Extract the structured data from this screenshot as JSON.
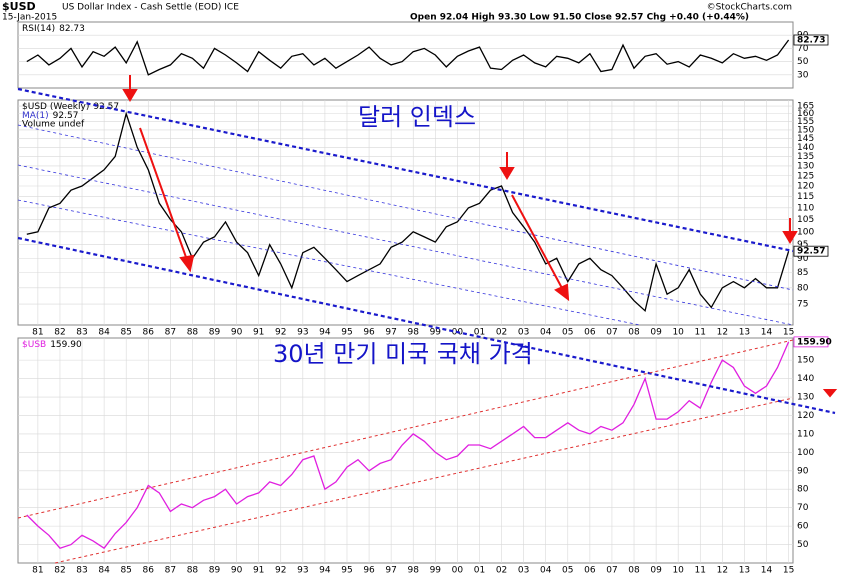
{
  "header": {
    "symbol": "$USD",
    "description": "US Dollar Index - Cash Settle (EOD) ICE",
    "date": "15-Jan-2015",
    "quote": "Open 92.04 High 93.30 Low 91.50 Close 92.57 Chg +0.40 (+0.44%)",
    "credit": "©StockCharts.com"
  },
  "chart_data": [
    {
      "type": "line",
      "grid": true,
      "xlim": [
        1980.1,
        2015.2
      ],
      "ylim": [
        10,
        110
      ],
      "yticks": [
        90,
        70,
        50,
        30
      ],
      "x": [
        1980.5,
        1981,
        1981.5,
        1982,
        1982.5,
        1983,
        1983.5,
        1984,
        1984.5,
        1985,
        1985.5,
        1986,
        1986.5,
        1987,
        1987.5,
        1988,
        1988.5,
        1989,
        1989.5,
        1990,
        1990.5,
        1991,
        1991.5,
        1992,
        1992.5,
        1993,
        1993.5,
        1994,
        1994.5,
        1995,
        1995.5,
        1996,
        1996.5,
        1997,
        1997.5,
        1998,
        1998.5,
        1999,
        1999.5,
        2000,
        2000.5,
        2001,
        2001.5,
        2002,
        2002.5,
        2003,
        2003.5,
        2004,
        2004.5,
        2005,
        2005.5,
        2006,
        2006.5,
        2007,
        2007.5,
        2008,
        2008.5,
        2009,
        2009.5,
        2010,
        2010.5,
        2011,
        2011.5,
        2012,
        2012.5,
        2013,
        2013.5,
        2014,
        2014.5,
        2015
      ],
      "series": [
        {
          "name": "RSI(14)",
          "color": "#000000",
          "values": [
            50,
            60,
            45,
            55,
            70,
            42,
            65,
            58,
            72,
            48,
            80,
            30,
            38,
            45,
            62,
            55,
            40,
            70,
            60,
            48,
            35,
            65,
            52,
            40,
            58,
            62,
            45,
            55,
            40,
            50,
            60,
            72,
            55,
            45,
            50,
            65,
            70,
            60,
            42,
            58,
            66,
            72,
            40,
            38,
            52,
            60,
            48,
            42,
            58,
            55,
            48,
            62,
            35,
            38,
            75,
            40,
            58,
            62,
            46,
            50,
            42,
            60,
            55,
            48,
            62,
            55,
            58,
            52,
            60,
            82.73
          ]
        }
      ]
    },
    {
      "type": "line",
      "grid": true,
      "log": true,
      "xlim": [
        1980.1,
        2015.2
      ],
      "ylim": [
        69,
        169
      ],
      "yticks": [
        165,
        160,
        155,
        150,
        145,
        140,
        135,
        130,
        125,
        120,
        115,
        110,
        105,
        100,
        95,
        90,
        85,
        80,
        75
      ],
      "xticks": [
        {
          "value": 1981,
          "label": "81"
        },
        {
          "value": 1982,
          "label": "82"
        },
        {
          "value": 1983,
          "label": "83"
        },
        {
          "value": 1984,
          "label": "84"
        },
        {
          "value": 1985,
          "label": "85"
        },
        {
          "value": 1986,
          "label": "86"
        },
        {
          "value": 1987,
          "label": "87"
        },
        {
          "value": 1988,
          "label": "88"
        },
        {
          "value": 1989,
          "label": "89"
        },
        {
          "value": 1990,
          "label": "90"
        },
        {
          "value": 1991,
          "label": "91"
        },
        {
          "value": 1992,
          "label": "92"
        },
        {
          "value": 1993,
          "label": "93"
        },
        {
          "value": 1994,
          "label": "94"
        },
        {
          "value": 1995,
          "label": "95"
        },
        {
          "value": 1996,
          "label": "96"
        },
        {
          "value": 1997,
          "label": "97"
        },
        {
          "value": 1998,
          "label": "98"
        },
        {
          "value": 1999,
          "label": "99"
        },
        {
          "value": 2000,
          "label": "00"
        },
        {
          "value": 2001,
          "label": "01"
        },
        {
          "value": 2002,
          "label": "02"
        },
        {
          "value": 2003,
          "label": "03"
        },
        {
          "value": 2004,
          "label": "04"
        },
        {
          "value": 2005,
          "label": "05"
        },
        {
          "value": 2006,
          "label": "06"
        },
        {
          "value": 2007,
          "label": "07"
        },
        {
          "value": 2008,
          "label": "08"
        },
        {
          "value": 2009,
          "label": "09"
        },
        {
          "value": 2010,
          "label": "10"
        },
        {
          "value": 2011,
          "label": "11"
        },
        {
          "value": 2012,
          "label": "12"
        },
        {
          "value": 2013,
          "label": "13"
        },
        {
          "value": 2014,
          "label": "14"
        },
        {
          "value": 2015,
          "label": "15"
        }
      ],
      "annotation": "달러 인덱스",
      "overlay": {
        "name": "MA(1)",
        "value": 92.57
      },
      "volume_label": "Volume undef",
      "x": [
        1980.5,
        1981,
        1981.5,
        1982,
        1982.5,
        1983,
        1983.5,
        1984,
        1984.5,
        1985,
        1985.5,
        1986,
        1986.5,
        1987,
        1987.5,
        1988,
        1988.5,
        1989,
        1989.5,
        1990,
        1990.5,
        1991,
        1991.5,
        1992,
        1992.5,
        1993,
        1993.5,
        1994,
        1994.5,
        1995,
        1995.5,
        1996,
        1996.5,
        1997,
        1997.5,
        1998,
        1998.5,
        1999,
        1999.5,
        2000,
        2000.5,
        2001,
        2001.5,
        2002,
        2002.5,
        2003,
        2003.5,
        2004,
        2004.5,
        2005,
        2005.5,
        2006,
        2006.5,
        2007,
        2007.5,
        2008,
        2008.5,
        2009,
        2009.5,
        2010,
        2010.5,
        2011,
        2011.5,
        2012,
        2012.5,
        2013,
        2013.5,
        2014,
        2014.5,
        2015
      ],
      "series": [
        {
          "name": "$USD (Weekly)",
          "color": "#000000",
          "values": [
            99,
            100,
            110,
            112,
            118,
            120,
            124,
            128,
            135,
            160,
            140,
            128,
            112,
            105,
            100,
            90,
            96,
            98,
            104,
            96,
            92,
            84,
            95,
            88,
            80,
            92,
            94,
            90,
            86,
            82,
            84,
            86,
            88,
            94,
            96,
            100,
            98,
            96,
            102,
            104,
            110,
            112,
            118,
            120,
            108,
            102,
            96,
            88,
            90,
            82,
            88,
            90,
            86,
            84,
            80,
            76,
            73,
            88,
            78,
            80,
            86,
            78,
            74,
            80,
            82,
            80,
            83,
            80,
            80,
            92.57
          ]
        }
      ]
    },
    {
      "type": "line",
      "grid": true,
      "xlim": [
        1980.1,
        2015.2
      ],
      "ylim": [
        40,
        162
      ],
      "yticks": [
        150,
        140,
        130,
        120,
        110,
        100,
        90,
        80,
        70,
        60,
        50
      ],
      "xticks": [
        {
          "value": 1981,
          "label": "81"
        },
        {
          "value": 1982,
          "label": "82"
        },
        {
          "value": 1983,
          "label": "83"
        },
        {
          "value": 1984,
          "label": "84"
        },
        {
          "value": 1985,
          "label": "85"
        },
        {
          "value": 1986,
          "label": "86"
        },
        {
          "value": 1987,
          "label": "87"
        },
        {
          "value": 1988,
          "label": "88"
        },
        {
          "value": 1989,
          "label": "89"
        },
        {
          "value": 1990,
          "label": "90"
        },
        {
          "value": 1991,
          "label": "91"
        },
        {
          "value": 1992,
          "label": "92"
        },
        {
          "value": 1993,
          "label": "93"
        },
        {
          "value": 1994,
          "label": "94"
        },
        {
          "value": 1995,
          "label": "95"
        },
        {
          "value": 1996,
          "label": "96"
        },
        {
          "value": 1997,
          "label": "97"
        },
        {
          "value": 1998,
          "label": "98"
        },
        {
          "value": 1999,
          "label": "99"
        },
        {
          "value": 2000,
          "label": "00"
        },
        {
          "value": 2001,
          "label": "01"
        },
        {
          "value": 2002,
          "label": "02"
        },
        {
          "value": 2003,
          "label": "03"
        },
        {
          "value": 2004,
          "label": "04"
        },
        {
          "value": 2005,
          "label": "05"
        },
        {
          "value": 2006,
          "label": "06"
        },
        {
          "value": 2007,
          "label": "07"
        },
        {
          "value": 2008,
          "label": "08"
        },
        {
          "value": 2009,
          "label": "09"
        },
        {
          "value": 2010,
          "label": "10"
        },
        {
          "value": 2011,
          "label": "11"
        },
        {
          "value": 2012,
          "label": "12"
        },
        {
          "value": 2013,
          "label": "13"
        },
        {
          "value": 2014,
          "label": "14"
        },
        {
          "value": 2015,
          "label": "15"
        }
      ],
      "annotation": "30년 만기 미국 국채 가격",
      "x": [
        1980.5,
        1981,
        1981.5,
        1982,
        1982.5,
        1983,
        1983.5,
        1984,
        1984.5,
        1985,
        1985.5,
        1986,
        1986.5,
        1987,
        1987.5,
        1988,
        1988.5,
        1989,
        1989.5,
        1990,
        1990.5,
        1991,
        1991.5,
        1992,
        1992.5,
        1993,
        1993.5,
        1994,
        1994.5,
        1995,
        1995.5,
        1996,
        1996.5,
        1997,
        1997.5,
        1998,
        1998.5,
        1999,
        1999.5,
        2000,
        2000.5,
        2001,
        2001.5,
        2002,
        2002.5,
        2003,
        2003.5,
        2004,
        2004.5,
        2005,
        2005.5,
        2006,
        2006.5,
        2007,
        2007.5,
        2008,
        2008.5,
        2009,
        2009.5,
        2010,
        2010.5,
        2011,
        2011.5,
        2012,
        2012.5,
        2013,
        2013.5,
        2014,
        2014.5,
        2015
      ],
      "series": [
        {
          "name": "$USB",
          "color": "#e020e0",
          "last_value_label": "159.90",
          "values": [
            66,
            60,
            55,
            48,
            50,
            55,
            52,
            48,
            56,
            62,
            70,
            82,
            78,
            68,
            72,
            70,
            74,
            76,
            80,
            72,
            76,
            78,
            84,
            82,
            88,
            96,
            98,
            80,
            84,
            92,
            96,
            90,
            94,
            96,
            104,
            110,
            106,
            100,
            96,
            98,
            104,
            104,
            102,
            106,
            110,
            114,
            108,
            108,
            112,
            116,
            112,
            110,
            114,
            112,
            116,
            126,
            140,
            118,
            118,
            122,
            128,
            124,
            138,
            150,
            146,
            136,
            132,
            136,
            146,
            159.9
          ]
        }
      ]
    }
  ]
}
